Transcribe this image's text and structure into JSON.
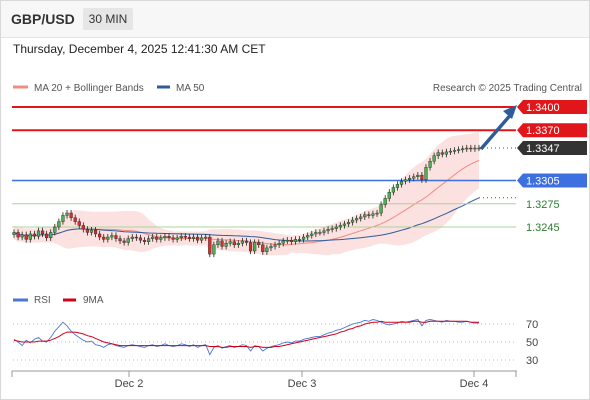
{
  "header": {
    "symbol": "GBP/USD",
    "timeframe": "30 MIN"
  },
  "datetime": "Thursday, December 4, 2025 12:41:30 AM CET",
  "legend": {
    "ma20": {
      "label": "MA 20 + Bollinger Bands",
      "color": "#f28b82"
    },
    "ma50": {
      "label": "MA 50",
      "color": "#2e5c9a"
    },
    "credit": "Research © 2025 Trading Central"
  },
  "levels": [
    {
      "label": "1.3400",
      "value": 1.34,
      "kind": "resistance",
      "color": "#e0161b"
    },
    {
      "label": "1.3370",
      "value": 1.337,
      "kind": "resistance",
      "color": "#e0161b"
    },
    {
      "label": "1.3347",
      "value": 1.3347,
      "kind": "last",
      "color": "#333333"
    },
    {
      "label": "1.3305",
      "value": 1.3305,
      "kind": "pivot",
      "color": "#3d6fe0"
    },
    {
      "label": "1.3275",
      "value": 1.3275,
      "kind": "support",
      "color": "#6aa84f"
    },
    {
      "label": "1.3245",
      "value": 1.3245,
      "kind": "support",
      "color": "#6aa84f"
    }
  ],
  "rsi": {
    "legend_rsi": "RSI",
    "legend_ma": "9MA",
    "rsi_color": "#4a78d0",
    "ma_color": "#d0021b",
    "levels": [
      "70",
      "50",
      "30"
    ]
  },
  "x_axis": {
    "labels": [
      "Dec 2",
      "Dec 3",
      "Dec 4"
    ]
  },
  "chart_data": {
    "type": "candlestick",
    "ylim": [
      1.3205,
      1.3405
    ],
    "close": [
      1.3238,
      1.3232,
      1.3235,
      1.3229,
      1.3236,
      1.3233,
      1.324,
      1.3236,
      1.3231,
      1.3238,
      1.3245,
      1.3252,
      1.326,
      1.3263,
      1.3257,
      1.3252,
      1.3247,
      1.3242,
      1.3238,
      1.3241,
      1.3236,
      1.3232,
      1.3229,
      1.3232,
      1.3234,
      1.323,
      1.3227,
      1.3225,
      1.323,
      1.3232,
      1.3231,
      1.3228,
      1.3226,
      1.323,
      1.3232,
      1.3229,
      1.3231,
      1.3233,
      1.3231,
      1.3229,
      1.3231,
      1.3233,
      1.3232,
      1.323,
      1.3232,
      1.3228,
      1.3231,
      1.3232,
      1.321,
      1.3222,
      1.3227,
      1.322,
      1.3224,
      1.3226,
      1.3222,
      1.3224,
      1.3227,
      1.3225,
      1.3214,
      1.3225,
      1.3222,
      1.3213,
      1.3218,
      1.322,
      1.3222,
      1.3224,
      1.3227,
      1.3228,
      1.3226,
      1.3229,
      1.3229,
      1.3232,
      1.3234,
      1.3236,
      1.3238,
      1.3238,
      1.324,
      1.3242,
      1.3243,
      1.3245,
      1.3247,
      1.3249,
      1.3251,
      1.3254,
      1.3256,
      1.3258,
      1.3261,
      1.326,
      1.3262,
      1.3263,
      1.3274,
      1.3282,
      1.329,
      1.3296,
      1.33,
      1.3304,
      1.3306,
      1.3308,
      1.331,
      1.3312,
      1.3306,
      1.3322,
      1.333,
      1.3337,
      1.3341,
      1.3339,
      1.3342,
      1.3343,
      1.3344,
      1.3345,
      1.3346,
      1.3347,
      1.3346,
      1.3347,
      1.3347
    ],
    "rsi": [
      53,
      50,
      46,
      52,
      49,
      53,
      55,
      51,
      50,
      55,
      62,
      67,
      72,
      68,
      62,
      58,
      55,
      52,
      50,
      51,
      47,
      46,
      44,
      47,
      48,
      46,
      45,
      44,
      46,
      47,
      46,
      45,
      44,
      46,
      47,
      45,
      46,
      48,
      46,
      45,
      46,
      48,
      47,
      45,
      47,
      44,
      46,
      47,
      36,
      44,
      46,
      43,
      45,
      46,
      44,
      45,
      47,
      46,
      40,
      46,
      45,
      40,
      43,
      45,
      46,
      47,
      49,
      50,
      49,
      51,
      51,
      53,
      54,
      55,
      56,
      56,
      58,
      60,
      61,
      63,
      64,
      66,
      68,
      70,
      71,
      72,
      74,
      73,
      75,
      74,
      72,
      70,
      69,
      70,
      71,
      73,
      72,
      73,
      74,
      75,
      68,
      74,
      75,
      74,
      73,
      72,
      74,
      73,
      73,
      72,
      72,
      73,
      72,
      71,
      71
    ],
    "rsi_ma": [
      52,
      51,
      50,
      50,
      50,
      50,
      51,
      51,
      51,
      52,
      54,
      56,
      59,
      61,
      61,
      61,
      60,
      59,
      57,
      56,
      54,
      52,
      50,
      49,
      48,
      47,
      46,
      46,
      46,
      46,
      46,
      46,
      46,
      46,
      46,
      46,
      46,
      46,
      46,
      46,
      46,
      46,
      46,
      46,
      46,
      46,
      46,
      46,
      45,
      45,
      45,
      44,
      44,
      45,
      45,
      45,
      45,
      45,
      44,
      45,
      45,
      44,
      44,
      44,
      45,
      45,
      46,
      47,
      48,
      49,
      50,
      51,
      52,
      53,
      54,
      55,
      56,
      57,
      58,
      59,
      61,
      62,
      64,
      65,
      67,
      68,
      70,
      71,
      72,
      72,
      73,
      72,
      72,
      72,
      72,
      72,
      72,
      72,
      73,
      73,
      72,
      72,
      73,
      73,
      73,
      73,
      73,
      73,
      73,
      73,
      73,
      73,
      72,
      72,
      72
    ]
  }
}
